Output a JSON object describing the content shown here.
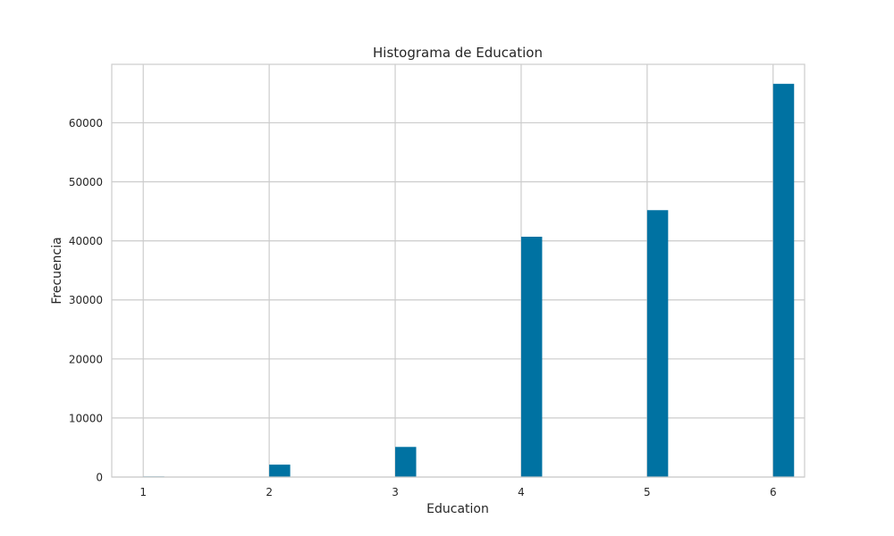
{
  "chart_data": {
    "type": "bar",
    "title": "Histograma de Education",
    "xlabel": "Education",
    "ylabel": "Frecuencia",
    "xlim": [
      0.75,
      6.25
    ],
    "ylim": [
      0,
      69900
    ],
    "xticks": [
      1,
      2,
      3,
      4,
      5,
      6
    ],
    "xtick_labels": [
      "1",
      "2",
      "3",
      "4",
      "5",
      "6"
    ],
    "yticks": [
      0,
      10000,
      20000,
      30000,
      40000,
      50000,
      60000
    ],
    "ytick_labels": [
      "0",
      "10000",
      "20000",
      "30000",
      "40000",
      "50000",
      "60000"
    ],
    "bar_width": 0.1667,
    "bars": [
      {
        "x": 1.0833,
        "value": 100
      },
      {
        "x": 2.0833,
        "value": 2100
      },
      {
        "x": 3.0833,
        "value": 5100
      },
      {
        "x": 4.0833,
        "value": 40700
      },
      {
        "x": 5.0833,
        "value": 45200
      },
      {
        "x": 6.0833,
        "value": 66600
      }
    ],
    "grid": true,
    "colors": {
      "bar": "#0072a2",
      "grid": "#cccccc",
      "frame": "#cccccc"
    }
  }
}
